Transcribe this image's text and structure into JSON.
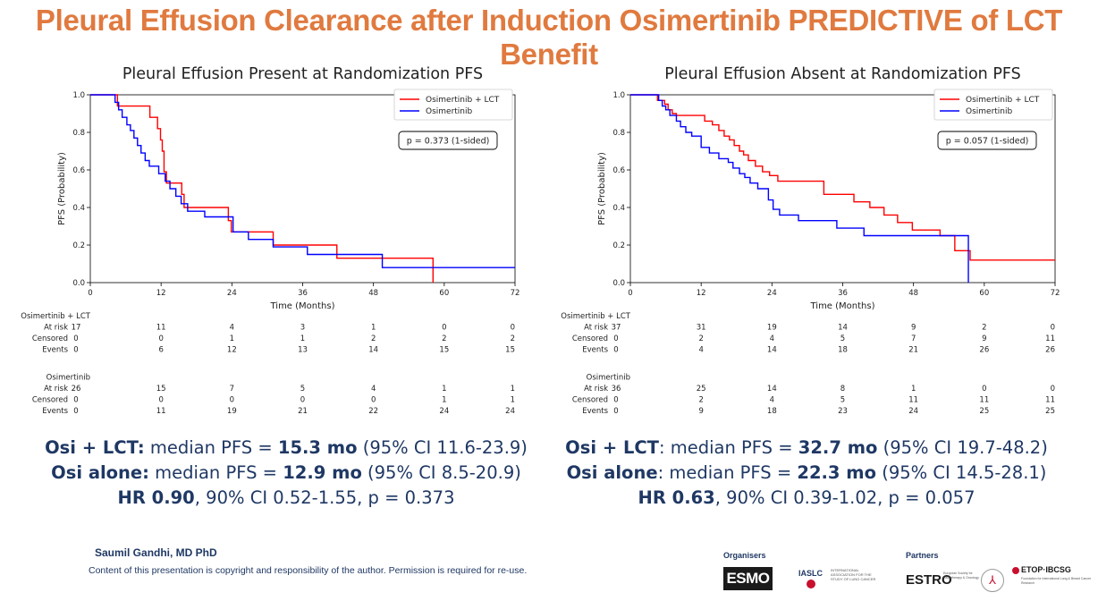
{
  "title": "Pleural Effusion Clearance after Induction Osimertinib PREDICTIVE of LCT Benefit",
  "chart_data": [
    {
      "type": "line",
      "title": "Pleural Effusion Present at Randomization PFS",
      "xlabel": "Time (Months)",
      "ylabel": "PFS (Probability)",
      "xlim": [
        0,
        72
      ],
      "ylim": [
        0,
        1.0
      ],
      "xticks": [
        0,
        12,
        24,
        36,
        48,
        60,
        72
      ],
      "yticks": [
        0.0,
        0.2,
        0.4,
        0.6,
        0.8,
        1.0
      ],
      "legend": [
        "Osimertinib + LCT",
        "Osimertinib"
      ],
      "annotation": "p = 0.373 (1-sided)",
      "series": [
        {
          "name": "Osimertinib + LCT",
          "color": "#ff0000",
          "x": [
            0,
            4.6,
            8.7,
            10.1,
            11.4,
            11.9,
            12.2,
            12.5,
            12.9,
            14.3,
            15.5,
            15.9,
            23.4,
            23.9,
            31.0,
            41.8,
            58.1,
            58.1
          ],
          "y": [
            1.0,
            0.94,
            0.94,
            0.88,
            0.82,
            0.76,
            0.7,
            0.59,
            0.53,
            0.53,
            0.47,
            0.4,
            0.33,
            0.27,
            0.2,
            0.13,
            0.13,
            0.0
          ]
        },
        {
          "name": "Osimertinib",
          "color": "#0000ff",
          "x": [
            0,
            4.2,
            4.8,
            5.4,
            6.2,
            6.8,
            7.4,
            8.0,
            8.6,
            9.3,
            10.0,
            11.6,
            12.7,
            13.5,
            14.5,
            15.4,
            16.5,
            19.4,
            24.2,
            26.8,
            31.0,
            36.8,
            49.5,
            72
          ],
          "y": [
            1.0,
            0.96,
            0.92,
            0.88,
            0.84,
            0.81,
            0.77,
            0.73,
            0.69,
            0.65,
            0.62,
            0.58,
            0.54,
            0.5,
            0.46,
            0.42,
            0.38,
            0.35,
            0.27,
            0.23,
            0.19,
            0.15,
            0.08,
            0.08
          ]
        }
      ],
      "risk_table": {
        "columns": [
          "0",
          "12",
          "24",
          "36",
          "48",
          "60",
          "72"
        ],
        "groups": [
          {
            "name": "Osimertinib + LCT",
            "rows": [
              {
                "label": "At risk",
                "values": [
                  "17",
                  "11",
                  "4",
                  "3",
                  "1",
                  "0",
                  "0"
                ]
              },
              {
                "label": "Censored",
                "values": [
                  "0",
                  "0",
                  "1",
                  "1",
                  "2",
                  "2",
                  "2"
                ]
              },
              {
                "label": "Events",
                "values": [
                  "0",
                  "6",
                  "12",
                  "13",
                  "14",
                  "15",
                  "15"
                ]
              }
            ]
          },
          {
            "name": "Osimertinib",
            "rows": [
              {
                "label": "At risk",
                "values": [
                  "26",
                  "15",
                  "7",
                  "5",
                  "4",
                  "1",
                  "1"
                ]
              },
              {
                "label": "Censored",
                "values": [
                  "0",
                  "0",
                  "0",
                  "0",
                  "0",
                  "1",
                  "1"
                ]
              },
              {
                "label": "Events",
                "values": [
                  "0",
                  "11",
                  "19",
                  "21",
                  "22",
                  "24",
                  "24"
                ]
              }
            ]
          }
        ]
      }
    },
    {
      "type": "line",
      "title": "Pleural Effusion Absent at Randomization PFS",
      "xlabel": "Time (Months)",
      "ylabel": "PFS (Probability)",
      "xlim": [
        0,
        72
      ],
      "ylim": [
        0,
        1.0
      ],
      "xticks": [
        0,
        12,
        24,
        36,
        48,
        60,
        72
      ],
      "yticks": [
        0.0,
        0.2,
        0.4,
        0.6,
        0.8,
        1.0
      ],
      "legend": [
        "Osimertinib + LCT",
        "Osimertinib"
      ],
      "annotation": "p = 0.057 (1-sided)",
      "series": [
        {
          "name": "Osimertinib + LCT",
          "color": "#ff0000",
          "x": [
            0,
            4.6,
            5.8,
            6.4,
            7.1,
            7.8,
            8.5,
            9.4,
            12.6,
            13.9,
            15.0,
            15.9,
            16.8,
            17.6,
            18.5,
            19.2,
            20.0,
            21.2,
            22.4,
            23.6,
            25.0,
            28.7,
            32.8,
            37.9,
            40.6,
            43.0,
            45.3,
            47.8,
            52.5,
            55.0,
            57.6,
            72
          ],
          "y": [
            1.0,
            0.97,
            0.95,
            0.92,
            0.9,
            0.89,
            0.89,
            0.89,
            0.86,
            0.84,
            0.81,
            0.78,
            0.76,
            0.73,
            0.7,
            0.68,
            0.65,
            0.62,
            0.59,
            0.57,
            0.54,
            0.54,
            0.47,
            0.43,
            0.4,
            0.36,
            0.32,
            0.28,
            0.25,
            0.17,
            0.12,
            0.12
          ]
        },
        {
          "name": "Osimertinib",
          "color": "#0000ff",
          "x": [
            0,
            4.8,
            5.4,
            6.0,
            6.7,
            7.8,
            8.5,
            9.4,
            10.4,
            12.0,
            13.4,
            15.0,
            16.6,
            17.4,
            18.5,
            19.4,
            20.3,
            21.6,
            23.4,
            24.2,
            25.3,
            28.5,
            35.0,
            39.6,
            57.2,
            57.3
          ],
          "y": [
            1.0,
            0.97,
            0.94,
            0.92,
            0.89,
            0.86,
            0.83,
            0.8,
            0.78,
            0.72,
            0.69,
            0.66,
            0.64,
            0.61,
            0.58,
            0.56,
            0.53,
            0.5,
            0.44,
            0.39,
            0.36,
            0.33,
            0.29,
            0.25,
            0.25,
            0.0
          ]
        }
      ],
      "risk_table": {
        "columns": [
          "0",
          "12",
          "24",
          "36",
          "48",
          "60",
          "72"
        ],
        "groups": [
          {
            "name": "Osimertinib + LCT",
            "rows": [
              {
                "label": "At risk",
                "values": [
                  "37",
                  "31",
                  "19",
                  "14",
                  "9",
                  "2",
                  "0"
                ]
              },
              {
                "label": "Censored",
                "values": [
                  "0",
                  "2",
                  "4",
                  "5",
                  "7",
                  "9",
                  "11"
                ]
              },
              {
                "label": "Events",
                "values": [
                  "0",
                  "4",
                  "14",
                  "18",
                  "21",
                  "26",
                  "26"
                ]
              }
            ]
          },
          {
            "name": "Osimertinib",
            "rows": [
              {
                "label": "At risk",
                "values": [
                  "36",
                  "25",
                  "14",
                  "8",
                  "1",
                  "0",
                  "0"
                ]
              },
              {
                "label": "Censored",
                "values": [
                  "0",
                  "2",
                  "4",
                  "5",
                  "11",
                  "11",
                  "11"
                ]
              },
              {
                "label": "Events",
                "values": [
                  "0",
                  "9",
                  "18",
                  "23",
                  "24",
                  "25",
                  "25"
                ]
              }
            ]
          }
        ]
      }
    }
  ],
  "stats": {
    "left": {
      "line1": {
        "b1": "Osi + LCT:",
        "t1": " median PFS = ",
        "b2": "15.3 mo",
        "t2": " (95% CI 11.6-23.9)"
      },
      "line2": {
        "b1": "Osi alone:",
        "t1": " median PFS = ",
        "b2": "12.9 mo",
        "t2": " (95% CI 8.5-20.9)"
      },
      "line3": {
        "b1": "HR 0.90",
        "t1": ", 90% CI 0.52-1.55, p = 0.373"
      }
    },
    "right": {
      "line1": {
        "b1": "Osi + LCT",
        "t1": ": median PFS = ",
        "b2": "32.7 mo",
        "t2": " (95% CI 19.7-48.2)"
      },
      "line2": {
        "b1": "Osi alone",
        "t1": ": median PFS = ",
        "b2": "22.3 mo",
        "t2": " (95% CI 14.5-28.1)"
      },
      "line3": {
        "b1": "HR 0.63",
        "t1": ", 90% CI 0.39-1.02, p = 0.057"
      }
    }
  },
  "footer": {
    "author": "Saumil Gandhi, MD PhD",
    "copyright": "Content of this presentation is copyright and responsibility of the author. Permission is required for re-use.",
    "organisers_label": "Organisers",
    "partners_label": "Partners",
    "logos": {
      "esmo": "ESMO",
      "iaslc": "IASLC",
      "iaslc_sub": "INTERNATIONAL ASSOCIATION FOR THE STUDY OF LUNG CANCER",
      "estro": "ESTRO",
      "estro_sub": "European Society for Radiotherapy & Oncology",
      "etop": "ETOP·IBCSG",
      "etop_sub": "Foundation for International Lung & Breast Cancer Research"
    }
  }
}
